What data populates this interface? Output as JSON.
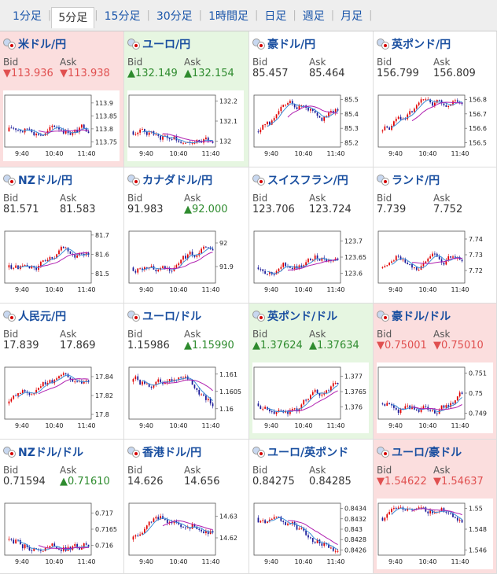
{
  "tabs": [
    "1分足",
    "5分足",
    "15分足",
    "30分足",
    "1時間足",
    "日足",
    "週足",
    "月足"
  ],
  "active_tab": 1,
  "bid_label": "Bid",
  "ask_label": "Ask",
  "up_color": "#2e8b2e",
  "down_color": "#e05050",
  "pairs": [
    {
      "name": "米ドル/円",
      "dir": "down",
      "bid": "▼113.936",
      "ask": "▼113.938",
      "bid_dir": "down",
      "ask_dir": "down",
      "flags": [
        "us",
        "jp"
      ],
      "chart_data": {
        "type": "candlestick",
        "x_ticks": [
          "9:40",
          "10:40",
          "11:40"
        ],
        "y_ticks": [
          "113.9",
          "113.85",
          "113.8",
          "113.75"
        ],
        "ylim": [
          113.73,
          113.93
        ],
        "trend": "up"
      }
    },
    {
      "name": "ユーロ/円",
      "dir": "up",
      "bid": "▲132.149",
      "ask": "▲132.154",
      "bid_dir": "up",
      "ask_dir": "up",
      "flags": [
        "eu",
        "jp"
      ],
      "chart_data": {
        "type": "candlestick",
        "x_ticks": [
          "9:40",
          "10:40",
          "11:40"
        ],
        "y_ticks": [
          "132.2",
          "132.1",
          "132"
        ],
        "ylim": [
          131.97,
          132.23
        ],
        "trend": "flat"
      }
    },
    {
      "name": "豪ドル/円",
      "dir": "none",
      "bid": "85.457",
      "ask": "85.464",
      "bid_dir": "none",
      "ask_dir": "none",
      "flags": [
        "au",
        "jp"
      ],
      "chart_data": {
        "type": "candlestick",
        "x_ticks": [
          "9:40",
          "10:40",
          "11:40"
        ],
        "y_ticks": [
          "85.5",
          "85.4",
          "85.3",
          "85.2"
        ],
        "ylim": [
          85.17,
          85.53
        ],
        "trend": "up"
      }
    },
    {
      "name": "英ポンド/円",
      "dir": "none",
      "bid": "156.799",
      "ask": "156.809",
      "bid_dir": "none",
      "ask_dir": "none",
      "flags": [
        "gb",
        "jp"
      ],
      "chart_data": {
        "type": "candlestick",
        "x_ticks": [
          "9:40",
          "10:40",
          "11:40"
        ],
        "y_ticks": [
          "156.8",
          "156.7",
          "156.6",
          "156.5"
        ],
        "ylim": [
          156.47,
          156.83
        ],
        "trend": "up"
      }
    },
    {
      "name": "NZドル/円",
      "dir": "none",
      "bid": "81.571",
      "ask": "81.583",
      "bid_dir": "none",
      "ask_dir": "none",
      "flags": [
        "nz",
        "jp"
      ],
      "chart_data": {
        "type": "candlestick",
        "x_ticks": [
          "9:40",
          "10:40",
          "11:40"
        ],
        "y_ticks": [
          "81.7",
          "81.6",
          "81.5"
        ],
        "ylim": [
          81.45,
          81.72
        ],
        "trend": "flat"
      }
    },
    {
      "name": "カナダドル/円",
      "dir": "none",
      "bid": "91.983",
      "ask": "▲92.000",
      "bid_dir": "none",
      "ask_dir": "up",
      "flags": [
        "ca",
        "jp"
      ],
      "chart_data": {
        "type": "candlestick",
        "x_ticks": [
          "9:40",
          "10:40",
          "11:40"
        ],
        "y_ticks": [
          "92",
          "91.9"
        ],
        "ylim": [
          91.83,
          92.05
        ],
        "trend": "up"
      }
    },
    {
      "name": "スイスフラン/円",
      "dir": "none",
      "bid": "123.706",
      "ask": "123.724",
      "bid_dir": "none",
      "ask_dir": "none",
      "flags": [
        "ch",
        "jp"
      ],
      "chart_data": {
        "type": "candlestick",
        "x_ticks": [
          "9:40",
          "10:40",
          "11:40"
        ],
        "y_ticks": [
          "123.7",
          "123.65",
          "123.6"
        ],
        "ylim": [
          123.57,
          123.73
        ],
        "trend": "up"
      }
    },
    {
      "name": "ランド/円",
      "dir": "none",
      "bid": "7.739",
      "ask": "7.752",
      "bid_dir": "none",
      "ask_dir": "none",
      "flags": [
        "za",
        "jp"
      ],
      "chart_data": {
        "type": "candlestick",
        "x_ticks": [
          "9:40",
          "10:40",
          "11:40"
        ],
        "y_ticks": [
          "7.74",
          "7.73",
          "7.72"
        ],
        "ylim": [
          7.712,
          7.745
        ],
        "trend": "up"
      }
    },
    {
      "name": "人民元/円",
      "dir": "none",
      "bid": "17.839",
      "ask": "17.869",
      "bid_dir": "none",
      "ask_dir": "none",
      "flags": [
        "cn",
        "jp"
      ],
      "chart_data": {
        "type": "candlestick",
        "x_ticks": [
          "9:40",
          "10:40",
          "11:40"
        ],
        "y_ticks": [
          "17.84",
          "17.82",
          "17.8"
        ],
        "ylim": [
          17.795,
          17.85
        ],
        "trend": "up"
      }
    },
    {
      "name": "ユーロ/ドル",
      "dir": "none",
      "bid": "1.15986",
      "ask": "▲1.15990",
      "bid_dir": "none",
      "ask_dir": "up",
      "flags": [
        "eu",
        "us"
      ],
      "chart_data": {
        "type": "candlestick",
        "x_ticks": [
          "9:40",
          "10:40",
          "11:40"
        ],
        "y_ticks": [
          "1.161",
          "1.1605",
          "1.16"
        ],
        "ylim": [
          1.1597,
          1.1612
        ],
        "trend": "down"
      }
    },
    {
      "name": "英ポンド/ドル",
      "dir": "up",
      "bid": "▲1.37624",
      "ask": "▲1.37634",
      "bid_dir": "up",
      "ask_dir": "up",
      "flags": [
        "gb",
        "us"
      ],
      "chart_data": {
        "type": "candlestick",
        "x_ticks": [
          "9:40",
          "10:40",
          "11:40"
        ],
        "y_ticks": [
          "1.377",
          "1.3765",
          "1.376"
        ],
        "ylim": [
          1.3756,
          1.3773
        ],
        "trend": "up"
      }
    },
    {
      "name": "豪ドル/ドル",
      "dir": "down",
      "bid": "▼0.75001",
      "ask": "▼0.75010",
      "bid_dir": "down",
      "ask_dir": "down",
      "flags": [
        "au",
        "us"
      ],
      "chart_data": {
        "type": "candlestick",
        "x_ticks": [
          "9:40",
          "10:40",
          "11:40"
        ],
        "y_ticks": [
          "0.751",
          "0.75",
          "0.749"
        ],
        "ylim": [
          0.7487,
          0.7513
        ],
        "trend": "up"
      }
    },
    {
      "name": "NZドル/ドル",
      "dir": "none",
      "bid": "0.71594",
      "ask": "▲0.71610",
      "bid_dir": "none",
      "ask_dir": "up",
      "flags": [
        "nz",
        "us"
      ],
      "chart_data": {
        "type": "candlestick",
        "x_ticks": [
          "9:40",
          "10:40",
          "11:40"
        ],
        "y_ticks": [
          "0.717",
          "0.7165",
          "0.716"
        ],
        "ylim": [
          0.7157,
          0.7173
        ],
        "trend": "flat"
      }
    },
    {
      "name": "香港ドル/円",
      "dir": "none",
      "bid": "14.626",
      "ask": "14.656",
      "bid_dir": "none",
      "ask_dir": "none",
      "flags": [
        "hk",
        "jp"
      ],
      "chart_data": {
        "type": "candlestick",
        "x_ticks": [
          "9:40",
          "10:40",
          "11:40"
        ],
        "y_ticks": [
          "14.63",
          "14.62"
        ],
        "ylim": [
          14.612,
          14.636
        ],
        "trend": "up"
      }
    },
    {
      "name": "ユーロ/英ポンド",
      "dir": "none",
      "bid": "0.84275",
      "ask": "0.84285",
      "bid_dir": "none",
      "ask_dir": "none",
      "flags": [
        "eu",
        "gb"
      ],
      "chart_data": {
        "type": "candlestick",
        "x_ticks": [
          "9:40",
          "10:40",
          "11:40"
        ],
        "y_ticks": [
          "0.8434",
          "0.8432",
          "0.843",
          "0.8428",
          "0.8426"
        ],
        "ylim": [
          0.8425,
          0.8435
        ],
        "trend": "down"
      }
    },
    {
      "name": "ユーロ/豪ドル",
      "dir": "down",
      "bid": "▼1.54622",
      "ask": "▼1.54637",
      "bid_dir": "down",
      "ask_dir": "down",
      "flags": [
        "eu",
        "au"
      ],
      "chart_data": {
        "type": "candlestick",
        "x_ticks": [
          "9:40",
          "10:40",
          "11:40"
        ],
        "y_ticks": [
          "1.55",
          "1.548",
          "1.546"
        ],
        "ylim": [
          1.5455,
          1.5505
        ],
        "trend": "down"
      }
    }
  ]
}
